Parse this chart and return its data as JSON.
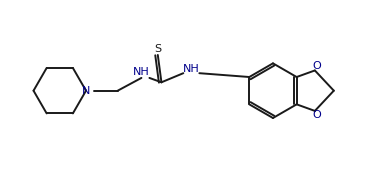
{
  "background_color": "#ffffff",
  "line_color": "#1a1a1a",
  "text_color": "#1a1a1a",
  "nh_color": "#00008b",
  "n_color": "#00008b",
  "o_color": "#00008b",
  "line_width": 1.4,
  "figsize": [
    3.71,
    1.85
  ],
  "dpi": 100,
  "xlim": [
    0,
    10
  ],
  "ylim": [
    0,
    5
  ]
}
